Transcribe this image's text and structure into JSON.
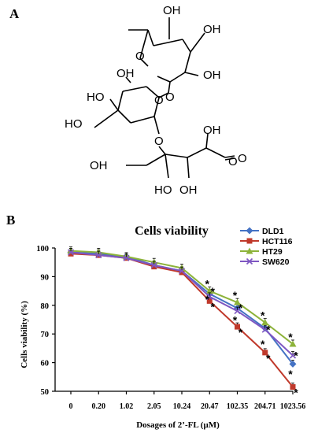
{
  "panels": {
    "a_label": "A",
    "b_label": "B"
  },
  "structure": {
    "labels": [
      "OH",
      "OH",
      "O",
      "OH",
      "O",
      "OH",
      "HO",
      "O",
      "O",
      "HO",
      "O",
      "OH",
      "HO",
      "OH",
      "OH",
      "O"
    ]
  },
  "chart_data": {
    "type": "line",
    "title": "Cells viability",
    "xlabel": "Dosages of 2’-FL (μM)",
    "ylabel": "Cells viability (%)",
    "categories": [
      "0",
      "0.20",
      "1.02",
      "2.05",
      "10.24",
      "20.47",
      "102.35",
      "204.71",
      "1023.56"
    ],
    "ylim": [
      50,
      100
    ],
    "yticks": [
      "50",
      "60",
      "70",
      "80",
      "90",
      "100"
    ],
    "grid": false,
    "legend_position": "top-right",
    "series": [
      {
        "name": "DLD1",
        "color": "#4472C4",
        "marker": "diamond",
        "values": [
          98.5,
          98,
          97,
          94,
          92,
          84,
          79,
          72,
          59.5
        ]
      },
      {
        "name": "HCT116",
        "color": "#C0392B",
        "marker": "square",
        "values": [
          98,
          97.5,
          96.5,
          93.5,
          91.5,
          81.5,
          72.5,
          63.5,
          51.5
        ]
      },
      {
        "name": "HT29",
        "color": "#8DB33A",
        "marker": "triangle",
        "values": [
          99,
          98.5,
          97,
          95,
          93,
          85,
          81,
          74,
          66.5
        ]
      },
      {
        "name": "SW620",
        "color": "#7E57C2",
        "marker": "x",
        "values": [
          98.5,
          97.5,
          96.5,
          94,
          92,
          83,
          78,
          71.5,
          62.5
        ]
      }
    ],
    "significance": [
      {
        "category": "20.47",
        "marks": [
          "*",
          "*",
          "*",
          "*"
        ]
      },
      {
        "category": "102.35",
        "marks": [
          "*",
          "*",
          "*",
          "*"
        ]
      },
      {
        "category": "204.71",
        "marks": [
          "*",
          "*",
          "*",
          "*"
        ]
      },
      {
        "category": "1023.56",
        "marks": [
          "*",
          "*",
          "*",
          "*"
        ]
      }
    ]
  }
}
